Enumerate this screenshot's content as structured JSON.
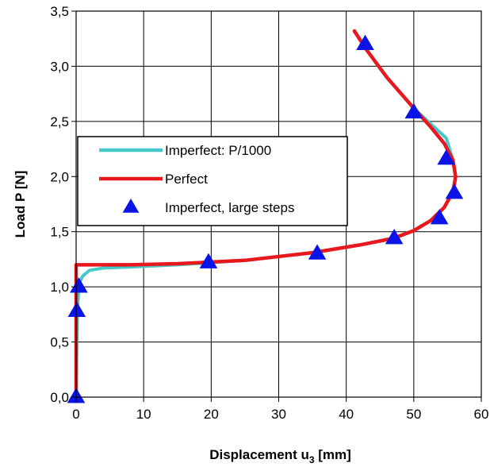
{
  "chart_data": {
    "type": "line",
    "xlabel": "Displacement  u",
    "xlabel_sub": "3",
    "xlabel_unit": " [mm]",
    "ylabel": "Load  P [N]",
    "xlim": [
      0,
      60
    ],
    "ylim": [
      0,
      3.5
    ],
    "x_ticks": [
      "0",
      "10",
      "20",
      "30",
      "40",
      "50",
      "60"
    ],
    "y_ticks": [
      "0,0",
      "0,5",
      "1,0",
      "1,5",
      "2,0",
      "2,5",
      "3,0",
      "3,5"
    ],
    "grid": true,
    "legend_position": "left-middle",
    "series": [
      {
        "name": "Imperfect: P/1000",
        "kind": "line",
        "color": "#45C8C8",
        "x": [
          0,
          0.1,
          0.2,
          0.35,
          0.6,
          1.0,
          2.0,
          4.0,
          8.0,
          15.0,
          25.0,
          35.0,
          42.0,
          47.0,
          50.0,
          52.5,
          54.5,
          55.8,
          56.2,
          55.8,
          54.8,
          53.0,
          50.0,
          46.0,
          43.0,
          41.2
        ],
        "y": [
          0,
          0.5,
          0.8,
          0.95,
          1.05,
          1.1,
          1.15,
          1.17,
          1.18,
          1.2,
          1.24,
          1.31,
          1.38,
          1.44,
          1.51,
          1.6,
          1.72,
          1.86,
          2.0,
          2.15,
          2.35,
          2.45,
          2.62,
          2.9,
          3.15,
          3.32
        ]
      },
      {
        "name": "Perfect",
        "kind": "line",
        "color": "#E8191E",
        "x": [
          0,
          0,
          0.2,
          3.0,
          8.0,
          15.0,
          25.0,
          35.0,
          42.0,
          47.0,
          50.0,
          52.5,
          54.5,
          55.8,
          56.2,
          55.8,
          54.5,
          52.5,
          50.0,
          46.0,
          43.0,
          41.2
        ],
        "y": [
          0,
          1.2,
          1.2,
          1.2,
          1.2,
          1.21,
          1.24,
          1.31,
          1.38,
          1.44,
          1.51,
          1.6,
          1.72,
          1.86,
          2.0,
          2.15,
          2.3,
          2.45,
          2.62,
          2.9,
          3.15,
          3.32
        ]
      },
      {
        "name": "Imperfect, large steps",
        "kind": "markers",
        "marker": "triangle",
        "color": "#0A14E6",
        "x": [
          0,
          0.1,
          0.4,
          19.6,
          35.7,
          47.1,
          53.8,
          56.0,
          54.8,
          50.0,
          42.8
        ],
        "y": [
          0,
          0.78,
          1.0,
          1.22,
          1.3,
          1.44,
          1.62,
          1.85,
          2.16,
          2.58,
          3.2
        ]
      }
    ]
  }
}
